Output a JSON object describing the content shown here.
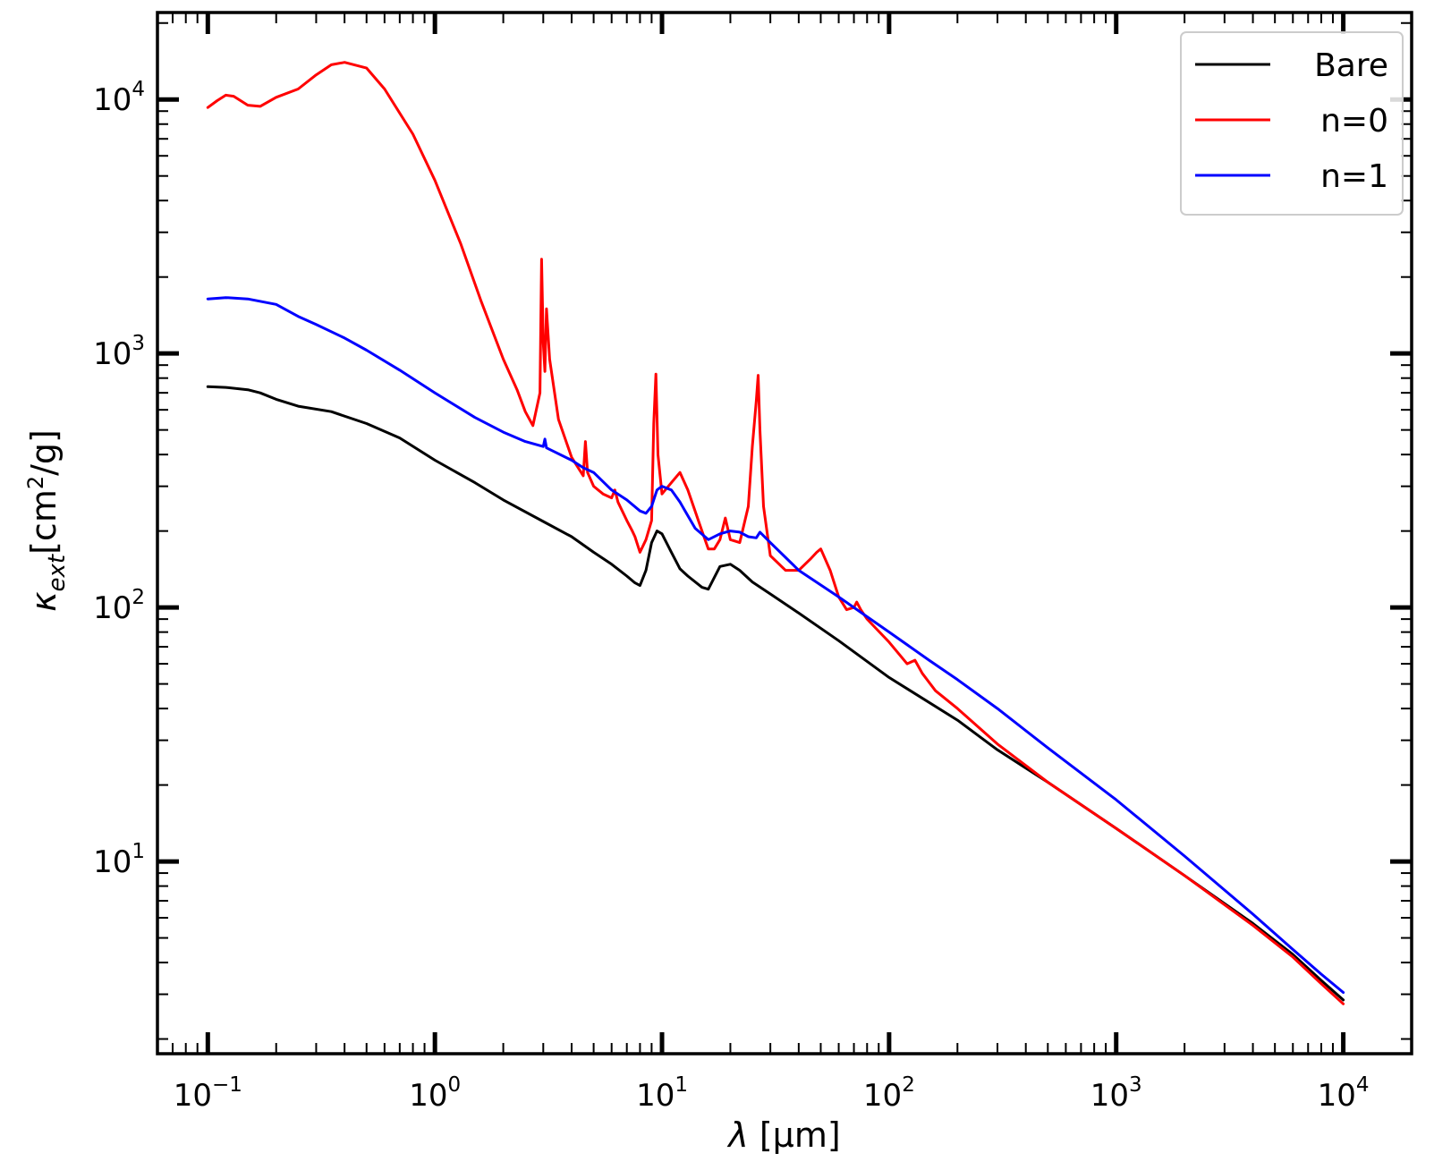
{
  "chart_data": {
    "type": "line",
    "xscale": "log",
    "yscale": "log",
    "xlim": [
      0.06,
      20000
    ],
    "ylim": [
      1.75,
      22000
    ],
    "xlabel": "λ [μm]",
    "ylabel": "κext[cm²/g]",
    "ylabel_parts": {
      "symbol": "κ",
      "sub": "ext",
      "pre": "[cm",
      "sup": "2",
      "post": "/g]"
    },
    "xlabel_parts": {
      "symbol": "λ",
      "rest": " [μm]"
    },
    "x_ticks": [
      {
        "base": "10",
        "exp": "−1",
        "value": 0.1
      },
      {
        "base": "10",
        "exp": "0",
        "value": 1
      },
      {
        "base": "10",
        "exp": "1",
        "value": 10
      },
      {
        "base": "10",
        "exp": "2",
        "value": 100
      },
      {
        "base": "10",
        "exp": "3",
        "value": 1000
      },
      {
        "base": "10",
        "exp": "4",
        "value": 10000
      }
    ],
    "y_ticks": [
      {
        "base": "10",
        "exp": "1",
        "value": 10
      },
      {
        "base": "10",
        "exp": "2",
        "value": 100
      },
      {
        "base": "10",
        "exp": "3",
        "value": 1000
      },
      {
        "base": "10",
        "exp": "4",
        "value": 10000
      }
    ],
    "grid": false,
    "legend_position": "top-right",
    "series": [
      {
        "name": "Bare",
        "color": "#000000",
        "x": [
          0.1,
          0.12,
          0.15,
          0.17,
          0.2,
          0.25,
          0.35,
          0.5,
          0.7,
          1.0,
          1.5,
          2.0,
          3.0,
          4.0,
          5.0,
          6.0,
          7.0,
          7.6,
          8.0,
          8.5,
          9.0,
          9.5,
          10.0,
          11.0,
          12.0,
          13.0,
          15.0,
          16.0,
          18.0,
          20.0,
          22.0,
          25.0,
          30.0,
          40.0,
          60.0,
          100.0,
          200.0,
          300.0,
          500.0,
          1000.0,
          2000.0,
          4000.0,
          6000.0,
          8000.0,
          10000.0
        ],
        "y": [
          740,
          735,
          720,
          700,
          660,
          620,
          590,
          530,
          465,
          380,
          310,
          265,
          218,
          190,
          165,
          148,
          133,
          125,
          122,
          140,
          180,
          200,
          195,
          165,
          142,
          133,
          120,
          118,
          145,
          148,
          140,
          126,
          113,
          95,
          74,
          53,
          36,
          27.5,
          20.5,
          13.5,
          8.8,
          5.7,
          4.3,
          3.4,
          2.85
        ]
      },
      {
        "name": "n=0",
        "color": "#ff0000",
        "x": [
          0.1,
          0.11,
          0.12,
          0.13,
          0.15,
          0.17,
          0.2,
          0.25,
          0.3,
          0.35,
          0.4,
          0.5,
          0.6,
          0.8,
          1.0,
          1.3,
          1.6,
          2.0,
          2.3,
          2.5,
          2.7,
          2.9,
          2.95,
          3.0,
          3.05,
          3.1,
          3.2,
          3.5,
          4.0,
          4.5,
          4.6,
          4.7,
          5.0,
          5.5,
          6.0,
          6.2,
          6.4,
          7.0,
          7.4,
          7.6,
          8.0,
          8.5,
          9.0,
          9.2,
          9.4,
          9.6,
          10.0,
          11.0,
          12.0,
          13.0,
          15.0,
          16.0,
          17.0,
          18.0,
          19.0,
          20.0,
          22.0,
          24.0,
          25.0,
          26.0,
          26.5,
          27.0,
          28.0,
          30.0,
          35.0,
          40.0,
          45.0,
          48.0,
          50.0,
          55.0,
          60.0,
          65.0,
          70.0,
          72.0,
          75.0,
          80.0,
          100.0,
          120.0,
          130.0,
          140.0,
          160.0,
          200.0,
          300.0,
          500.0,
          1000.0,
          2000.0,
          4000.0,
          6000.0,
          8000.0,
          10000.0
        ],
        "y": [
          9300,
          9900,
          10400,
          10300,
          9500,
          9400,
          10200,
          11000,
          12500,
          13700,
          14000,
          13300,
          11000,
          7300,
          4800,
          2700,
          1600,
          950,
          720,
          590,
          520,
          700,
          2350,
          1100,
          850,
          1500,
          950,
          550,
          390,
          330,
          450,
          340,
          300,
          280,
          270,
          290,
          260,
          220,
          200,
          190,
          165,
          185,
          220,
          530,
          830,
          400,
          280,
          310,
          340,
          290,
          200,
          170,
          170,
          185,
          225,
          185,
          180,
          250,
          430,
          650,
          820,
          500,
          250,
          160,
          140,
          140,
          155,
          165,
          170,
          140,
          110,
          98,
          100,
          105,
          98,
          90,
          73,
          60,
          62,
          55,
          47,
          40,
          29,
          20.5,
          13.5,
          8.8,
          5.6,
          4.2,
          3.3,
          2.75
        ]
      },
      {
        "name": "n=1",
        "color": "#0000ff",
        "x": [
          0.1,
          0.12,
          0.15,
          0.2,
          0.25,
          0.3,
          0.4,
          0.5,
          0.7,
          1.0,
          1.5,
          2.0,
          2.5,
          3.0,
          3.05,
          3.1,
          4.0,
          4.5,
          5.0,
          6.0,
          7.0,
          8.0,
          8.5,
          9.0,
          9.5,
          10.0,
          11.0,
          12.0,
          14.0,
          16.0,
          18.0,
          20.0,
          22.0,
          24.0,
          26.0,
          27.0,
          30.0,
          40.0,
          60.0,
          100.0,
          150.0,
          200.0,
          300.0,
          500.0,
          1000.0,
          2000.0,
          4000.0,
          6000.0,
          8000.0,
          10000.0
        ],
        "y": [
          1640,
          1660,
          1640,
          1560,
          1400,
          1300,
          1150,
          1030,
          860,
          700,
          560,
          490,
          450,
          430,
          460,
          425,
          380,
          355,
          340,
          290,
          265,
          240,
          235,
          250,
          290,
          300,
          290,
          260,
          205,
          185,
          195,
          200,
          198,
          190,
          188,
          198,
          180,
          140,
          110,
          80,
          62,
          52,
          40,
          28,
          17.5,
          10.5,
          6.2,
          4.5,
          3.6,
          3.05
        ]
      }
    ]
  }
}
